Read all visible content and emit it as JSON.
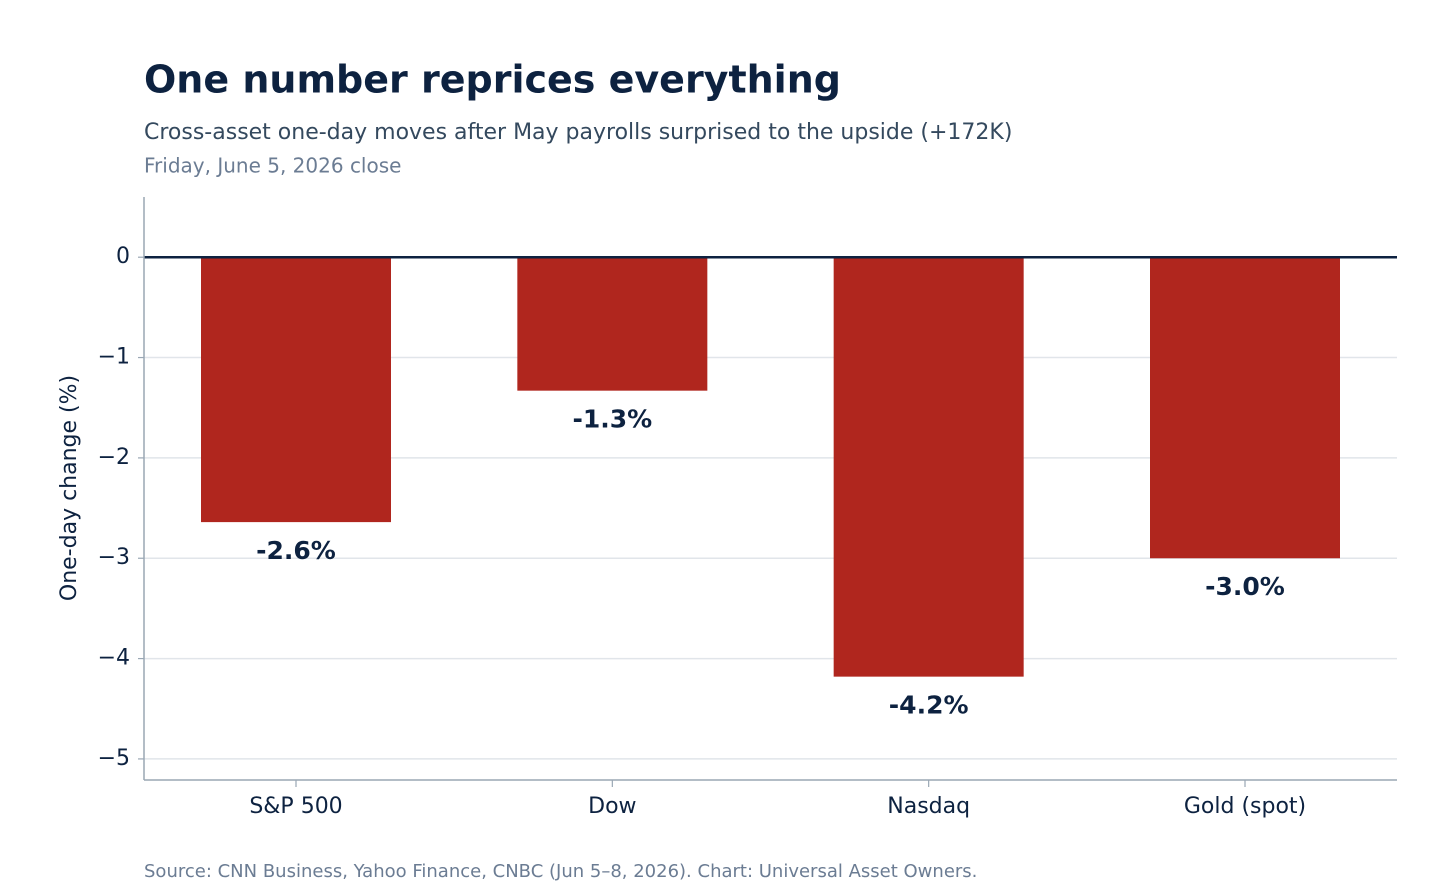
{
  "chart_data": {
    "type": "bar",
    "title": "One number reprices everything",
    "subtitle": "Cross-asset one-day moves after May payrolls surprised to the upside (+172K)",
    "note": "Friday, June 5, 2026 close",
    "y_label": "One-day change (%)",
    "source": "Source: CNN Business, Yahoo Finance, CNBC (Jun 5–8, 2026).  Chart: Universal Asset Owners.",
    "categories": [
      "S&P 500",
      "Dow",
      "Nasdaq",
      "Gold (spot)"
    ],
    "values": [
      -2.64,
      -1.33,
      -4.18,
      -3.0
    ],
    "value_labels": [
      "-2.6%",
      "-1.3%",
      "-4.2%",
      "-3.0%"
    ],
    "color": "#b0261e",
    "ylim": [
      -5.21,
      0.6
    ],
    "yticks": [
      0,
      {
        "value": -1,
        "label": "−1"
      },
      {
        "value": -2,
        "label": "−2"
      },
      {
        "value": -3,
        "label": "−3"
      },
      {
        "value": -4,
        "label": "−4"
      },
      {
        "value": -5,
        "label": "−5"
      }
    ],
    "grid": true
  }
}
